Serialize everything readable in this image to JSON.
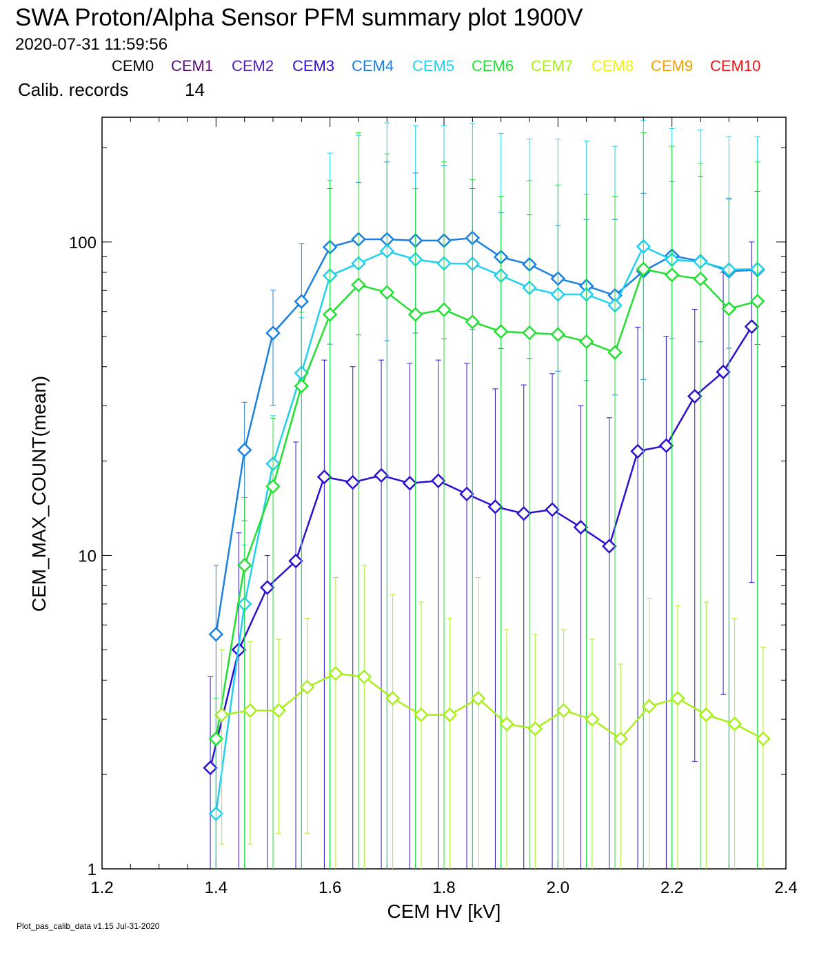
{
  "header": {
    "title": "SWA Proton/Alpha Sensor PFM summary plot 1900V",
    "timestamp": "2020-07-31 11:59:56",
    "calib_label": "Calib. records",
    "calib_count": "14"
  },
  "legend": [
    {
      "name": "CEM0",
      "color": "#000000"
    },
    {
      "name": "CEM1",
      "color": "#5a0a78"
    },
    {
      "name": "CEM2",
      "color": "#5020c0"
    },
    {
      "name": "CEM3",
      "color": "#2a10d0"
    },
    {
      "name": "CEM4",
      "color": "#1a80e0"
    },
    {
      "name": "CEM5",
      "color": "#20d0f0"
    },
    {
      "name": "CEM6",
      "color": "#20e030"
    },
    {
      "name": "CEM7",
      "color": "#a8f018"
    },
    {
      "name": "CEM8",
      "color": "#f0f010"
    },
    {
      "name": "CEM9",
      "color": "#f0a000"
    },
    {
      "name": "CEM10",
      "color": "#f01010"
    }
  ],
  "footer": "Plot_pas_calib_data v1.15 Jul-31-2020",
  "chart_data": {
    "type": "line",
    "xlabel": "CEM HV [kV]",
    "ylabel": "CEM_MAX_COUNT(mean)",
    "xlim": [
      1.2,
      2.4
    ],
    "ylim": [
      1,
      250
    ],
    "yscale": "log",
    "xticks": [
      "1.2",
      "1.4",
      "1.6",
      "1.8",
      "2.0",
      "2.2",
      "2.4"
    ],
    "yticks": [
      "1",
      "10",
      "100"
    ],
    "marker": "diamond",
    "series": [
      {
        "name": "CEM3",
        "color": "#2a10d0",
        "x": [
          1.39,
          1.44,
          1.49,
          1.54,
          1.59,
          1.64,
          1.69,
          1.74,
          1.79,
          1.84,
          1.89,
          1.94,
          1.99,
          2.04,
          2.09,
          2.14,
          2.19,
          2.24,
          2.29,
          2.34
        ],
        "y": [
          2.1,
          5,
          7.9,
          9.6,
          17.8,
          17.1,
          18,
          17,
          17.3,
          15.7,
          14.3,
          13.6,
          14,
          12.3,
          10.7,
          21.5,
          22.4,
          32.2,
          38.5,
          53.7
        ],
        "err_hi": [
          4.1,
          11.8,
          10,
          23,
          42,
          40,
          42,
          41,
          42,
          41,
          34,
          35,
          38,
          30,
          27.5,
          53.5,
          50,
          61,
          80,
          100
        ],
        "err_lo": [
          1,
          1,
          1,
          1,
          1,
          1,
          1,
          1,
          1,
          1,
          1,
          1,
          1,
          1,
          1,
          1,
          1,
          2.2,
          3.6,
          8.2
        ]
      },
      {
        "name": "CEM4",
        "color": "#1a80e0",
        "x": [
          1.4,
          1.45,
          1.5,
          1.55,
          1.6,
          1.65,
          1.7,
          1.75,
          1.8,
          1.85,
          1.9,
          1.95,
          2.0,
          2.05,
          2.1,
          2.15,
          2.2,
          2.25,
          2.3,
          2.35
        ],
        "y": [
          5.6,
          21.7,
          51.2,
          64.6,
          96.3,
          102,
          102,
          101,
          101,
          103,
          89.5,
          84.8,
          76.4,
          72.4,
          67.5,
          80.7,
          90.4,
          86.8,
          80.7,
          81.4
        ],
        "err_hi": [
          9.3,
          30.8,
          70.2,
          98.7,
          148,
          155,
          180,
          166,
          175,
          148,
          124,
          122,
          113,
          118,
          118,
          143,
          156,
          162,
          137,
          145
        ],
        "err_lo": [
          1,
          12.9,
          30.1,
          34.7,
          47.2,
          50.5,
          48.4,
          51.2,
          49.1,
          52.6,
          45.7,
          42.5,
          38.7,
          36.1,
          32.5,
          36.4,
          49.2,
          48,
          45.8,
          47.1
        ]
      },
      {
        "name": "CEM5",
        "color": "#20d0f0",
        "x": [
          1.4,
          1.45,
          1.5,
          1.55,
          1.6,
          1.65,
          1.7,
          1.75,
          1.8,
          1.85,
          1.9,
          1.95,
          2.0,
          2.05,
          2.1,
          2.15,
          2.2,
          2.25,
          2.3,
          2.35
        ],
        "y": [
          1.5,
          7,
          19.6,
          38.2,
          78.1,
          85.4,
          93.5,
          88,
          85.4,
          85.2,
          78.1,
          71.4,
          68,
          68,
          62.8,
          96.7,
          87.8,
          86.5,
          81.6,
          82
        ],
        "err_hi": [
          2.5,
          10.8,
          27.9,
          57.3,
          192,
          219,
          240,
          235,
          235,
          239,
          222,
          213,
          213,
          210,
          202,
          244,
          230,
          228,
          217,
          217
        ],
        "err_lo": [
          1,
          1,
          1,
          1,
          1,
          1,
          1,
          1,
          1,
          1,
          1,
          1,
          1,
          1,
          1,
          1,
          1,
          1,
          1,
          1
        ]
      },
      {
        "name": "CEM6",
        "color": "#20e030",
        "x": [
          1.4,
          1.45,
          1.5,
          1.55,
          1.6,
          1.65,
          1.7,
          1.75,
          1.8,
          1.85,
          1.9,
          1.95,
          2.0,
          2.05,
          2.1,
          2.15,
          2.2,
          2.25,
          2.3,
          2.35
        ],
        "y": [
          2.6,
          9.3,
          16.6,
          34.7,
          58.7,
          73,
          69,
          58.7,
          60.8,
          55.6,
          51.8,
          51.3,
          50.7,
          48.1,
          44.4,
          81.9,
          78.5,
          76.2,
          61.2,
          64.7
        ],
        "err_hi": [
          3.5,
          15.3,
          27.4,
          59.7,
          157,
          223,
          191,
          148,
          180,
          158,
          140,
          157,
          152,
          142,
          140,
          223,
          202,
          178,
          138,
          180
        ],
        "err_lo": [
          1,
          1,
          1,
          1,
          1,
          1,
          1,
          1,
          1,
          1,
          1,
          1,
          1,
          1,
          1,
          1,
          1,
          1,
          1,
          1
        ]
      },
      {
        "name": "CEM7",
        "color": "#a8f018",
        "x": [
          1.41,
          1.46,
          1.51,
          1.56,
          1.61,
          1.66,
          1.71,
          1.76,
          1.81,
          1.86,
          1.91,
          1.96,
          2.01,
          2.06,
          2.11,
          2.16,
          2.21,
          2.26,
          2.31,
          2.36
        ],
        "y": [
          3.1,
          3.2,
          3.2,
          3.8,
          4.2,
          4.1,
          3.5,
          3.1,
          3.1,
          3.5,
          2.9,
          2.8,
          3.2,
          3,
          2.6,
          3.3,
          3.5,
          3.1,
          2.9,
          2.6
        ],
        "err_hi": [
          5,
          5.3,
          5.4,
          6.3,
          8.5,
          9.3,
          7.5,
          7.1,
          6.3,
          8.5,
          5.8,
          5.6,
          5.8,
          5.4,
          4.5,
          7.3,
          6.9,
          7.1,
          6.3,
          5.1
        ],
        "err_lo": [
          1.2,
          1.2,
          1.3,
          1.3,
          1,
          1,
          1,
          1,
          1,
          1,
          1,
          1,
          1,
          1,
          1,
          1,
          1,
          1,
          1,
          1
        ]
      }
    ]
  }
}
